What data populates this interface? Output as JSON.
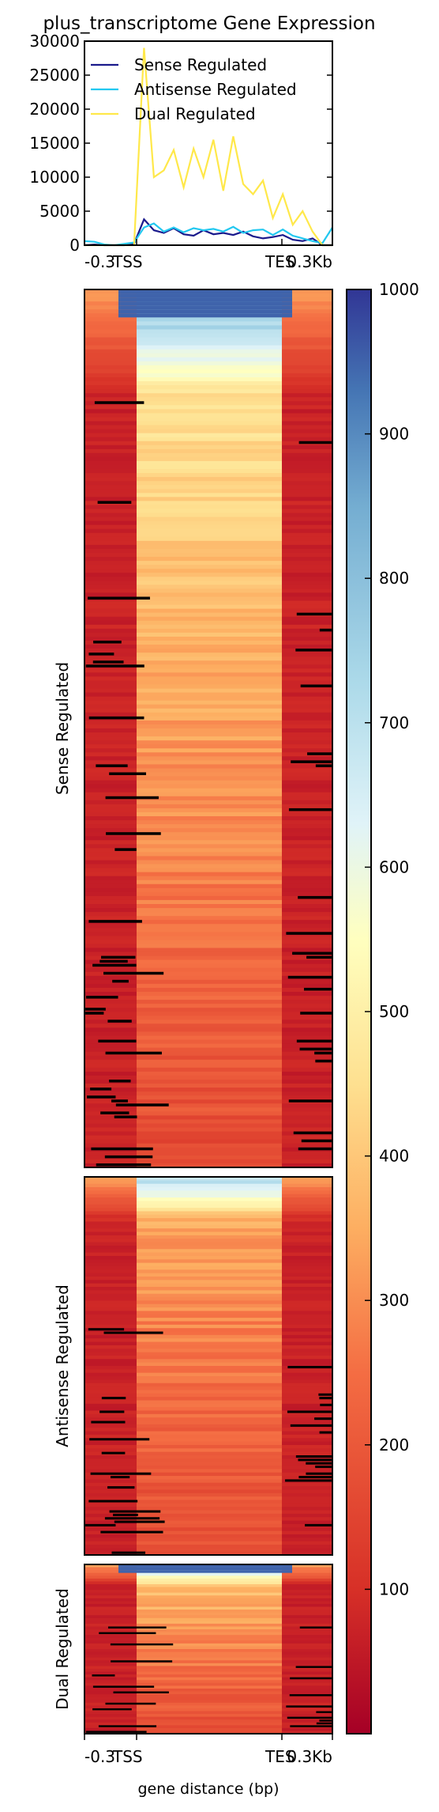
{
  "chart_data": [
    {
      "type": "line",
      "title": "plus_transcriptome Gene Expression",
      "ylim": [
        0,
        30000
      ],
      "yticks": [
        0,
        5000,
        10000,
        15000,
        20000,
        25000,
        30000
      ],
      "yticklabels": [
        "0",
        "5000",
        "10000",
        "15000",
        "20000",
        "25000",
        "30000"
      ],
      "xticklabels": [
        "-0.3",
        "TSS",
        "TES",
        "0.3Kb"
      ],
      "legend_position": "top-left",
      "grid": false,
      "x": [
        0,
        4,
        8,
        12,
        16,
        20,
        24,
        28,
        32,
        36,
        40,
        44,
        48,
        52,
        56,
        60,
        64,
        68,
        72,
        76,
        80,
        84,
        88,
        92,
        96,
        100
      ],
      "series": [
        {
          "name": "Sense Regulated",
          "color": "#1a1a8c",
          "values": [
            0,
            100,
            0,
            0,
            0,
            200,
            3800,
            2200,
            1800,
            2500,
            1600,
            1400,
            2200,
            1600,
            1800,
            1500,
            2000,
            1300,
            1000,
            1200,
            1500,
            800,
            600,
            1000,
            0,
            0
          ]
        },
        {
          "name": "Antisense Regulated",
          "color": "#22c8f0",
          "values": [
            600,
            500,
            100,
            0,
            200,
            400,
            2600,
            3200,
            2000,
            2600,
            1900,
            2500,
            2200,
            2400,
            2000,
            2700,
            1800,
            2200,
            2300,
            1500,
            2300,
            1400,
            1000,
            600,
            300,
            2600
          ]
        },
        {
          "name": "Dual Regulated",
          "color": "#ffe84a",
          "values": [
            0,
            0,
            0,
            0,
            0,
            0,
            29000,
            10000,
            11000,
            14000,
            8500,
            14200,
            10000,
            15500,
            8000,
            16000,
            9000,
            7500,
            9500,
            4000,
            7500,
            3000,
            5000,
            2000,
            0,
            0
          ]
        }
      ]
    },
    {
      "type": "heatmap",
      "xlabel": "gene distance (bp)",
      "xticklabels": [
        "-0.3",
        "TSS",
        "TES",
        "0.3Kb"
      ],
      "groups": [
        {
          "name": "Sense Regulated"
        },
        {
          "name": "Antisense Regulated"
        },
        {
          "name": "Dual Regulated"
        }
      ],
      "colormap": "RdYlBu",
      "colorbar": {
        "min": 0,
        "max": 1000,
        "ticks": [
          100,
          200,
          300,
          400,
          500,
          600,
          700,
          800,
          900,
          1000
        ],
        "ticklabels": [
          "100",
          "200",
          "300",
          "400",
          "500",
          "600",
          "700",
          "800",
          "900",
          "1000"
        ]
      }
    }
  ]
}
